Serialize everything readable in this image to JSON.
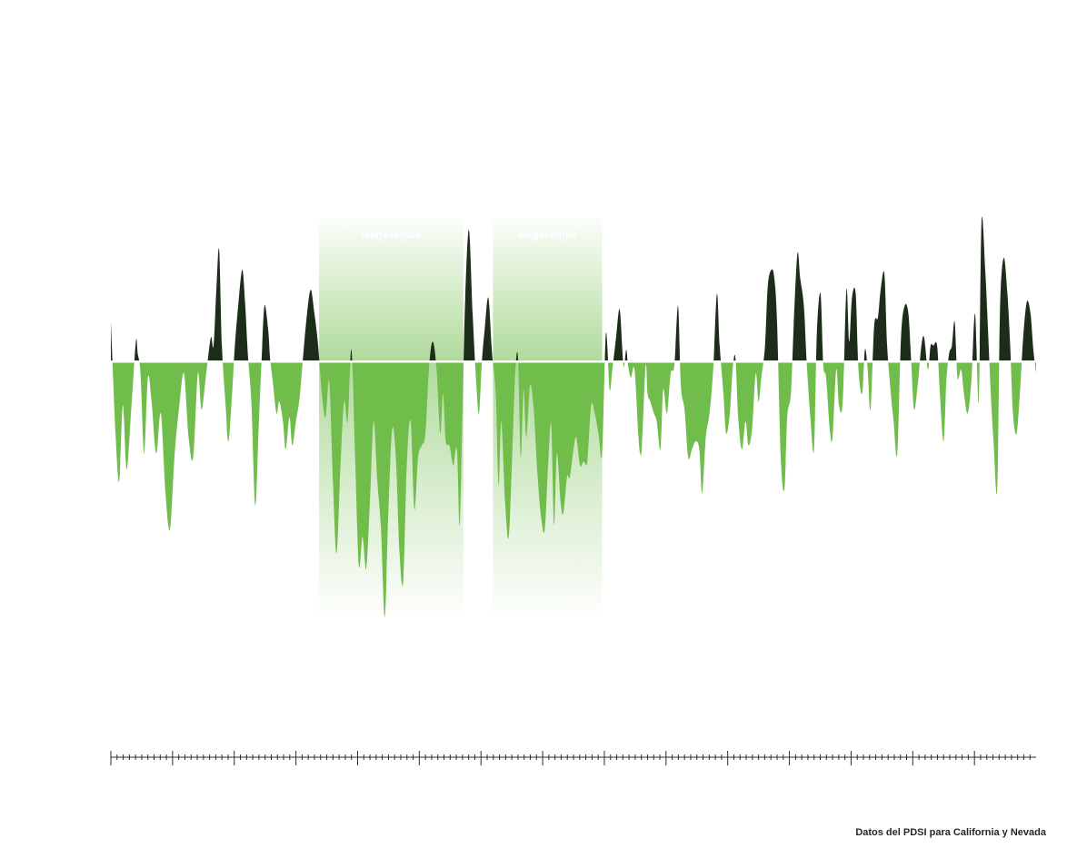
{
  "source": "Datos del PDSI para California y Nevada",
  "colors": {
    "wet": "#1c2e19",
    "dry": "#71bd4c",
    "band": "#71bd4c",
    "baseline": "#ffffff",
    "axis": "#2b2b2b"
  },
  "chart_data": {
    "type": "area",
    "title": "",
    "xlabel": "",
    "ylabel": "",
    "x_index_range": [
      0,
      1000
    ],
    "y_range": [
      -6.5,
      3.6
    ],
    "bands": [
      {
        "label": "Megasequía",
        "start": 225,
        "end": 381
      },
      {
        "label": "Megasequía",
        "start": 413,
        "end": 531
      }
    ],
    "ticks": {
      "major_every": 66.67,
      "minor_per_major": 10,
      "labels": []
    },
    "series": [
      {
        "points": [
          [
            0,
            1.0
          ],
          [
            5,
            -1.8
          ],
          [
            9,
            -3.0
          ],
          [
            13,
            -1.1
          ],
          [
            17,
            -2.7
          ],
          [
            22,
            -1.2
          ],
          [
            27,
            0.5
          ],
          [
            29,
            0.2
          ],
          [
            32,
            -0.3
          ],
          [
            36,
            -2.3
          ],
          [
            40,
            -0.4
          ],
          [
            44,
            -1.0
          ],
          [
            49,
            -2.3
          ],
          [
            54,
            -1.3
          ],
          [
            59,
            -3.3
          ],
          [
            64,
            -4.2
          ],
          [
            69,
            -2.3
          ],
          [
            74,
            -1.1
          ],
          [
            79,
            -0.3
          ],
          [
            84,
            -1.9
          ],
          [
            89,
            -2.4
          ],
          [
            94,
            -0.3
          ],
          [
            98,
            -1.2
          ],
          [
            103,
            -0.3
          ],
          [
            108,
            0.6
          ],
          [
            111,
            0.4
          ],
          [
            114,
            1.8
          ],
          [
            117,
            2.8
          ],
          [
            120,
            0.4
          ],
          [
            124,
            -1.1
          ],
          [
            127,
            -2.0
          ],
          [
            131,
            -0.8
          ],
          [
            134,
            0.4
          ],
          [
            138,
            1.5
          ],
          [
            142,
            2.3
          ],
          [
            145,
            1.5
          ],
          [
            148,
            0.2
          ],
          [
            152,
            -1.1
          ],
          [
            156,
            -3.6
          ],
          [
            160,
            -1.5
          ],
          [
            163,
            0.1
          ],
          [
            166,
            1.4
          ],
          [
            170,
            0.8
          ],
          [
            172,
            0.1
          ],
          [
            175,
            -0.5
          ],
          [
            179,
            -1.3
          ],
          [
            182,
            -1.0
          ],
          [
            186,
            -1.5
          ],
          [
            189,
            -2.2
          ],
          [
            193,
            -1.4
          ],
          [
            196,
            -2.1
          ],
          [
            200,
            -1.5
          ],
          [
            204,
            -0.9
          ],
          [
            208,
            0.2
          ],
          [
            212,
            1.2
          ],
          [
            216,
            1.8
          ],
          [
            220,
            1.2
          ],
          [
            224,
            0.4
          ],
          [
            228,
            -0.8
          ],
          [
            232,
            -1.4
          ],
          [
            236,
            -0.5
          ],
          [
            240,
            -3.0
          ],
          [
            244,
            -4.8
          ],
          [
            248,
            -2.7
          ],
          [
            252,
            -1.0
          ],
          [
            256,
            -1.5
          ],
          [
            260,
            0.3
          ],
          [
            264,
            -2.4
          ],
          [
            268,
            -5.1
          ],
          [
            272,
            -4.4
          ],
          [
            276,
            -5.2
          ],
          [
            280,
            -3.5
          ],
          [
            284,
            -1.5
          ],
          [
            288,
            -3.0
          ],
          [
            292,
            -4.2
          ],
          [
            296,
            -6.4
          ],
          [
            300,
            -3.7
          ],
          [
            304,
            -1.7
          ],
          [
            308,
            -2.4
          ],
          [
            312,
            -4.8
          ],
          [
            316,
            -5.5
          ],
          [
            320,
            -2.5
          ],
          [
            324,
            -1.5
          ],
          [
            328,
            -3.7
          ],
          [
            332,
            -2.4
          ],
          [
            336,
            -2.1
          ],
          [
            340,
            -1.8
          ],
          [
            344,
            -0.1
          ],
          [
            348,
            0.5
          ],
          [
            352,
            -0.2
          ],
          [
            356,
            -1.8
          ],
          [
            359,
            -0.8
          ],
          [
            362,
            -2.0
          ],
          [
            366,
            -2.1
          ],
          [
            370,
            -2.6
          ],
          [
            374,
            -2.2
          ],
          [
            377,
            -4.1
          ],
          [
            380,
            -1.2
          ],
          [
            383,
            1.6
          ],
          [
            387,
            3.3
          ],
          [
            391,
            1.2
          ],
          [
            395,
            -0.6
          ],
          [
            398,
            -1.3
          ],
          [
            401,
            0.0
          ],
          [
            404,
            0.8
          ],
          [
            408,
            1.6
          ],
          [
            412,
            0.2
          ],
          [
            416,
            -0.8
          ],
          [
            419,
            -3.1
          ],
          [
            422,
            -1.5
          ],
          [
            426,
            -3.5
          ],
          [
            430,
            -4.4
          ],
          [
            434,
            -2.2
          ],
          [
            437,
            -0.3
          ],
          [
            440,
            0.1
          ],
          [
            443,
            -2.4
          ],
          [
            446,
            -0.7
          ],
          [
            449,
            -1.9
          ],
          [
            453,
            -0.6
          ],
          [
            457,
            -1.2
          ],
          [
            461,
            -2.8
          ],
          [
            465,
            -3.9
          ],
          [
            469,
            -4.2
          ],
          [
            473,
            -2.4
          ],
          [
            476,
            -1.6
          ],
          [
            479,
            -4.1
          ],
          [
            482,
            -2.3
          ],
          [
            486,
            -3.5
          ],
          [
            489,
            -3.8
          ],
          [
            493,
            -2.9
          ],
          [
            496,
            -2.9
          ],
          [
            500,
            -2.2
          ],
          [
            503,
            -1.9
          ],
          [
            507,
            -2.6
          ],
          [
            511,
            -2.5
          ],
          [
            515,
            -2.5
          ],
          [
            519,
            -1.1
          ],
          [
            523,
            -1.3
          ],
          [
            527,
            -1.8
          ],
          [
            531,
            -2.3
          ],
          [
            535,
            0.7
          ],
          [
            539,
            -0.7
          ],
          [
            542,
            -0.2
          ],
          [
            546,
            0.6
          ],
          [
            550,
            1.3
          ],
          [
            554,
            -0.1
          ],
          [
            557,
            0.3
          ],
          [
            559,
            -0.1
          ],
          [
            562,
            -0.4
          ],
          [
            566,
            -0.2
          ],
          [
            570,
            -1.8
          ],
          [
            572,
            -2.3
          ],
          [
            574,
            -2.1
          ],
          [
            578,
            -0.1
          ],
          [
            580,
            -0.8
          ],
          [
            583,
            -1.0
          ],
          [
            587,
            -1.3
          ],
          [
            590,
            -1.5
          ],
          [
            594,
            -2.2
          ],
          [
            597,
            -0.7
          ],
          [
            601,
            -1.3
          ],
          [
            605,
            -0.3
          ],
          [
            609,
            -0.1
          ],
          [
            613,
            1.4
          ],
          [
            616,
            -0.6
          ],
          [
            620,
            -1.2
          ],
          [
            624,
            -2.4
          ],
          [
            628,
            -2.2
          ],
          [
            632,
            -2.0
          ],
          [
            636,
            -2.2
          ],
          [
            639,
            -3.3
          ],
          [
            643,
            -1.9
          ],
          [
            647,
            -1.3
          ],
          [
            651,
            -0.2
          ],
          [
            655,
            1.7
          ],
          [
            658,
            0.4
          ],
          [
            662,
            -0.8
          ],
          [
            665,
            -1.8
          ],
          [
            669,
            -1.3
          ],
          [
            672,
            -0.2
          ],
          [
            675,
            0.1
          ],
          [
            678,
            -1.4
          ],
          [
            682,
            -2.2
          ],
          [
            686,
            -1.5
          ],
          [
            689,
            -2.1
          ],
          [
            693,
            -1.7
          ],
          [
            697,
            -0.3
          ],
          [
            700,
            -1.0
          ],
          [
            703,
            -0.4
          ],
          [
            707,
            0.4
          ],
          [
            710,
            1.9
          ],
          [
            714,
            2.3
          ],
          [
            717,
            2.1
          ],
          [
            720,
            1.0
          ],
          [
            724,
            -2.4
          ],
          [
            728,
            -3.2
          ],
          [
            731,
            -1.4
          ],
          [
            735,
            -0.8
          ],
          [
            738,
            0.9
          ],
          [
            742,
            2.7
          ],
          [
            745,
            2.1
          ],
          [
            749,
            1.4
          ],
          [
            752,
            0.0
          ],
          [
            756,
            -1.4
          ],
          [
            760,
            -2.2
          ],
          [
            763,
            0.7
          ],
          [
            767,
            1.7
          ],
          [
            770,
            -0.1
          ],
          [
            773,
            -0.4
          ],
          [
            777,
            -1.7
          ],
          [
            780,
            -1.9
          ],
          [
            784,
            -0.2
          ],
          [
            787,
            -1.1
          ],
          [
            791,
            -1.0
          ],
          [
            795,
            1.8
          ],
          [
            798,
            0.5
          ],
          [
            801,
            1.6
          ],
          [
            805,
            1.7
          ],
          [
            808,
            -0.2
          ],
          [
            812,
            -0.8
          ],
          [
            815,
            0.3
          ],
          [
            818,
            -0.2
          ],
          [
            821,
            -1.2
          ],
          [
            825,
            0.9
          ],
          [
            829,
            1.1
          ],
          [
            832,
            1.8
          ],
          [
            836,
            2.2
          ],
          [
            839,
            0.4
          ],
          [
            843,
            -0.8
          ],
          [
            846,
            -1.5
          ],
          [
            850,
            -2.3
          ],
          [
            854,
            0.6
          ],
          [
            858,
            1.4
          ],
          [
            862,
            1.2
          ],
          [
            865,
            0.0
          ],
          [
            868,
            -1.2
          ],
          [
            872,
            -0.6
          ],
          [
            876,
            0.4
          ],
          [
            879,
            0.6
          ],
          [
            883,
            -0.2
          ],
          [
            886,
            0.4
          ],
          [
            889,
            0.4
          ],
          [
            893,
            0.4
          ],
          [
            896,
            -0.8
          ],
          [
            900,
            -2.0
          ],
          [
            903,
            -0.5
          ],
          [
            906,
            0.2
          ],
          [
            909,
            0.4
          ],
          [
            912,
            1.0
          ],
          [
            915,
            -0.4
          ],
          [
            919,
            -0.2
          ],
          [
            922,
            -0.8
          ],
          [
            926,
            -1.3
          ],
          [
            930,
            -0.5
          ],
          [
            934,
            1.2
          ],
          [
            938,
            -1.0
          ],
          [
            941,
            3.5
          ],
          [
            945,
            2.3
          ],
          [
            948,
            0.8
          ],
          [
            951,
            -0.8
          ],
          [
            954,
            -2.0
          ],
          [
            958,
            -3.2
          ],
          [
            961,
            1.3
          ],
          [
            965,
            2.6
          ],
          [
            969,
            1.7
          ],
          [
            972,
            0.4
          ],
          [
            975,
            -1.3
          ],
          [
            979,
            -1.8
          ],
          [
            983,
            -0.6
          ],
          [
            986,
            0.6
          ],
          [
            990,
            1.5
          ],
          [
            994,
            1.2
          ],
          [
            997,
            0.3
          ],
          [
            1000,
            -0.3
          ]
        ]
      }
    ]
  }
}
